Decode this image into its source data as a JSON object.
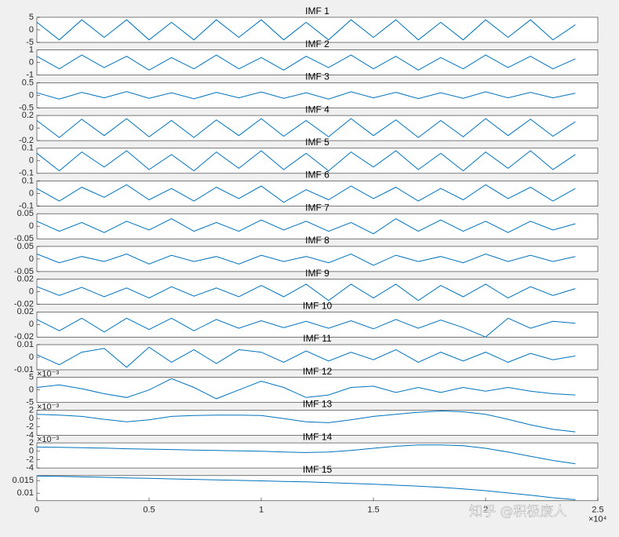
{
  "chart_data": [
    {
      "type": "line",
      "title": "IMF 1",
      "color": "#0072bd",
      "xlim": [
        0,
        25000
      ],
      "ylim": [
        -5,
        5
      ],
      "yticks": [
        -5,
        0,
        5
      ],
      "x": [
        0,
        1000,
        2000,
        3000,
        4000,
        5000,
        6000,
        7000,
        8000,
        9000,
        10000,
        11000,
        12000,
        13000,
        14000,
        15000,
        16000,
        17000,
        18000,
        19000,
        20000,
        21000,
        22000,
        23000,
        24000
      ],
      "values": [
        3,
        -4,
        4,
        -3,
        4,
        -4,
        3,
        -4,
        4,
        -3,
        4,
        -4,
        3,
        -4,
        4,
        -3,
        4,
        -4,
        3,
        -4,
        4,
        -3,
        4,
        -4,
        2
      ]
    },
    {
      "type": "line",
      "title": "IMF 2",
      "color": "#0072bd",
      "xlim": [
        0,
        25000
      ],
      "ylim": [
        -1,
        1
      ],
      "yticks": [
        -1,
        0,
        1
      ],
      "x": [
        0,
        1000,
        2000,
        3000,
        4000,
        5000,
        6000,
        7000,
        8000,
        9000,
        10000,
        11000,
        12000,
        13000,
        14000,
        15000,
        16000,
        17000,
        18000,
        19000,
        20000,
        21000,
        22000,
        23000,
        24000
      ],
      "values": [
        0.5,
        -0.5,
        0.6,
        -0.4,
        0.5,
        -0.6,
        0.4,
        -0.5,
        0.6,
        -0.5,
        0.4,
        -0.6,
        0.5,
        -0.4,
        0.6,
        -0.5,
        0.5,
        -0.6,
        0.4,
        -0.5,
        0.6,
        -0.4,
        0.5,
        -0.5,
        0.3
      ]
    },
    {
      "type": "line",
      "title": "IMF 3",
      "color": "#0072bd",
      "xlim": [
        0,
        25000
      ],
      "ylim": [
        -0.5,
        0.5
      ],
      "yticks": [
        -0.5,
        0,
        0.5
      ],
      "x": [
        0,
        1000,
        2000,
        3000,
        4000,
        5000,
        6000,
        7000,
        8000,
        9000,
        10000,
        11000,
        12000,
        13000,
        14000,
        15000,
        16000,
        17000,
        18000,
        19000,
        20000,
        21000,
        22000,
        23000,
        24000
      ],
      "values": [
        0.1,
        -0.15,
        0.12,
        -0.1,
        0.15,
        -0.12,
        0.1,
        -0.14,
        0.12,
        -0.1,
        0.13,
        -0.12,
        0.1,
        -0.15,
        0.14,
        -0.1,
        0.12,
        -0.13,
        0.1,
        -0.12,
        0.14,
        -0.1,
        0.12,
        -0.1,
        0.08
      ]
    },
    {
      "type": "line",
      "title": "IMF 4",
      "color": "#0072bd",
      "xlim": [
        0,
        25000
      ],
      "ylim": [
        -0.2,
        0.2
      ],
      "yticks": [
        -0.2,
        0,
        0.2
      ],
      "x": [
        0,
        1000,
        2000,
        3000,
        4000,
        5000,
        6000,
        7000,
        8000,
        9000,
        10000,
        11000,
        12000,
        13000,
        14000,
        15000,
        16000,
        17000,
        18000,
        19000,
        20000,
        21000,
        22000,
        23000,
        24000
      ],
      "values": [
        0.12,
        -0.15,
        0.14,
        -0.12,
        0.15,
        -0.14,
        0.12,
        -0.15,
        0.13,
        -0.12,
        0.15,
        -0.13,
        0.12,
        -0.14,
        0.15,
        -0.12,
        0.13,
        -0.15,
        0.12,
        -0.14,
        0.15,
        -0.12,
        0.14,
        -0.13,
        0.1
      ]
    },
    {
      "type": "line",
      "title": "IMF 5",
      "color": "#0072bd",
      "xlim": [
        0,
        25000
      ],
      "ylim": [
        -0.1,
        0.1
      ],
      "yticks": [
        -0.1,
        0,
        0.1
      ],
      "x": [
        0,
        1000,
        2000,
        3000,
        4000,
        5000,
        6000,
        7000,
        8000,
        9000,
        10000,
        11000,
        12000,
        13000,
        14000,
        15000,
        16000,
        17000,
        18000,
        19000,
        20000,
        21000,
        22000,
        23000,
        24000
      ],
      "values": [
        0.06,
        -0.08,
        0.07,
        -0.05,
        0.08,
        -0.07,
        0.05,
        -0.08,
        0.07,
        -0.06,
        0.08,
        -0.07,
        0.06,
        -0.08,
        0.07,
        -0.05,
        0.08,
        -0.07,
        0.06,
        -0.08,
        0.07,
        -0.06,
        0.08,
        -0.07,
        0.05
      ]
    },
    {
      "type": "line",
      "title": "IMF 6",
      "color": "#0072bd",
      "xlim": [
        0,
        25000
      ],
      "ylim": [
        -0.1,
        0.1
      ],
      "yticks": [
        -0.1,
        0,
        0.1
      ],
      "x": [
        0,
        1000,
        2000,
        3000,
        4000,
        5000,
        6000,
        7000,
        8000,
        9000,
        10000,
        11000,
        12000,
        13000,
        14000,
        15000,
        16000,
        17000,
        18000,
        19000,
        20000,
        21000,
        22000,
        23000,
        24000
      ],
      "values": [
        0.04,
        -0.06,
        0.05,
        -0.03,
        0.07,
        -0.05,
        0.04,
        -0.06,
        0.05,
        -0.04,
        0.06,
        -0.07,
        0.03,
        -0.05,
        0.06,
        -0.04,
        0.05,
        -0.06,
        0.04,
        -0.05,
        0.07,
        -0.04,
        0.05,
        -0.06,
        0.04
      ]
    },
    {
      "type": "line",
      "title": "IMF 7",
      "color": "#0072bd",
      "xlim": [
        0,
        25000
      ],
      "ylim": [
        -0.05,
        0.05
      ],
      "yticks": [
        -0.05,
        0,
        0.05
      ],
      "x": [
        0,
        1000,
        2000,
        3000,
        4000,
        5000,
        6000,
        7000,
        8000,
        9000,
        10000,
        11000,
        12000,
        13000,
        14000,
        15000,
        16000,
        17000,
        18000,
        19000,
        20000,
        21000,
        22000,
        23000,
        24000
      ],
      "values": [
        0.02,
        -0.02,
        0.015,
        -0.025,
        0.02,
        -0.015,
        0.03,
        -0.02,
        0.015,
        -0.02,
        0.025,
        -0.015,
        0.02,
        -0.02,
        0.015,
        -0.03,
        0.03,
        -0.02,
        0.025,
        -0.02,
        0.02,
        -0.025,
        0.02,
        -0.015,
        0.01
      ]
    },
    {
      "type": "line",
      "title": "IMF 8",
      "color": "#0072bd",
      "xlim": [
        0,
        25000
      ],
      "ylim": [
        -0.05,
        0.05
      ],
      "yticks": [
        -0.05,
        0,
        0.05
      ],
      "x": [
        0,
        1000,
        2000,
        3000,
        4000,
        5000,
        6000,
        7000,
        8000,
        9000,
        10000,
        11000,
        12000,
        13000,
        14000,
        15000,
        16000,
        17000,
        18000,
        19000,
        20000,
        21000,
        22000,
        23000,
        24000
      ],
      "values": [
        0.02,
        -0.015,
        0.01,
        -0.01,
        0.02,
        -0.02,
        0.015,
        -0.01,
        0.01,
        -0.02,
        0.015,
        -0.01,
        0.01,
        -0.015,
        0.02,
        -0.025,
        0.015,
        -0.01,
        0.01,
        -0.015,
        0.02,
        -0.01,
        0.015,
        -0.01,
        0.01
      ]
    },
    {
      "type": "line",
      "title": "IMF 9",
      "color": "#0072bd",
      "xlim": [
        0,
        25000
      ],
      "ylim": [
        -0.02,
        0.02
      ],
      "yticks": [
        -0.02,
        0,
        0.02
      ],
      "x": [
        0,
        1000,
        2000,
        3000,
        4000,
        5000,
        6000,
        7000,
        8000,
        9000,
        10000,
        11000,
        12000,
        13000,
        14000,
        15000,
        16000,
        17000,
        18000,
        19000,
        20000,
        21000,
        22000,
        23000,
        24000
      ],
      "values": [
        0.008,
        -0.006,
        0.007,
        -0.008,
        0.006,
        -0.01,
        0.008,
        -0.007,
        0.006,
        -0.008,
        0.01,
        -0.008,
        0.012,
        -0.014,
        0.012,
        -0.01,
        0.012,
        -0.014,
        0.01,
        -0.008,
        0.012,
        -0.01,
        0.008,
        -0.006,
        0.005
      ]
    },
    {
      "type": "line",
      "title": "IMF 10",
      "color": "#0072bd",
      "xlim": [
        0,
        25000
      ],
      "ylim": [
        -0.02,
        0.02
      ],
      "yticks": [
        -0.02,
        0,
        0.02
      ],
      "x": [
        0,
        1000,
        2000,
        3000,
        4000,
        5000,
        6000,
        7000,
        8000,
        9000,
        10000,
        11000,
        12000,
        13000,
        14000,
        15000,
        16000,
        17000,
        18000,
        19000,
        20000,
        21000,
        22000,
        23000,
        24000
      ],
      "values": [
        0.008,
        -0.01,
        0.01,
        -0.012,
        0.01,
        -0.008,
        0.01,
        -0.01,
        0.008,
        -0.006,
        0.006,
        -0.005,
        0.005,
        -0.006,
        0.006,
        -0.007,
        0.008,
        -0.006,
        0.007,
        -0.005,
        -0.02,
        0.01,
        -0.006,
        0.005,
        0.002
      ]
    },
    {
      "type": "line",
      "title": "IMF 11",
      "color": "#0072bd",
      "xlim": [
        0,
        25000
      ],
      "ylim": [
        -0.01,
        0.01
      ],
      "yticks": [
        -0.01,
        0,
        0.01
      ],
      "x": [
        0,
        1000,
        2000,
        3000,
        4000,
        5000,
        6000,
        7000,
        8000,
        9000,
        10000,
        11000,
        12000,
        13000,
        14000,
        15000,
        16000,
        17000,
        18000,
        19000,
        20000,
        21000,
        22000,
        23000,
        24000
      ],
      "values": [
        0.002,
        -0.006,
        0.004,
        0.007,
        -0.008,
        0.008,
        -0.004,
        0.006,
        -0.005,
        0.006,
        0.004,
        -0.004,
        0.005,
        -0.003,
        0.004,
        -0.002,
        0.006,
        -0.004,
        0.004,
        -0.003,
        0.004,
        -0.004,
        0.003,
        -0.002,
        0.001
      ]
    },
    {
      "type": "line",
      "title": "IMF 12",
      "color": "#0072bd",
      "xlim": [
        0,
        25000
      ],
      "ylim": [
        -5,
        5
      ],
      "yticks": [
        -5,
        0,
        5
      ],
      "y_multiplier": "×10⁻³",
      "x": [
        0,
        1000,
        2000,
        3000,
        4000,
        5000,
        6000,
        7000,
        8000,
        9000,
        10000,
        11000,
        12000,
        13000,
        14000,
        15000,
        16000,
        17000,
        18000,
        19000,
        20000,
        21000,
        22000,
        23000,
        24000
      ],
      "values": [
        1,
        2,
        0.5,
        -1.5,
        -3,
        0,
        4.5,
        1,
        -3.5,
        0,
        3.5,
        1,
        -3,
        -2,
        1,
        1.5,
        -1,
        1,
        -1,
        1,
        -0.5,
        1,
        -0.5,
        -1.5,
        -2
      ]
    },
    {
      "type": "line",
      "title": "IMF 13",
      "color": "#0072bd",
      "xlim": [
        0,
        25000
      ],
      "ylim": [
        -4,
        2
      ],
      "yticks": [
        -4,
        -2,
        0,
        2
      ],
      "y_multiplier": "×10⁻³",
      "x": [
        0,
        1000,
        2000,
        3000,
        4000,
        5000,
        6000,
        7000,
        8000,
        9000,
        10000,
        11000,
        12000,
        13000,
        14000,
        15000,
        16000,
        17000,
        18000,
        19000,
        20000,
        21000,
        22000,
        23000,
        24000
      ],
      "values": [
        1,
        0.8,
        0.5,
        -0.2,
        -0.8,
        -0.3,
        0.5,
        0.7,
        0.8,
        0.8,
        0.7,
        0,
        -0.8,
        -1,
        -0.3,
        0.5,
        1,
        1.5,
        1.8,
        1.6,
        1,
        -0.2,
        -1.5,
        -2.6,
        -3.2
      ]
    },
    {
      "type": "line",
      "title": "IMF 14",
      "color": "#0072bd",
      "xlim": [
        0,
        25000
      ],
      "ylim": [
        -4,
        2
      ],
      "yticks": [
        -4,
        -2,
        0,
        2
      ],
      "y_multiplier": "×10⁻³",
      "x": [
        0,
        1000,
        2000,
        3000,
        4000,
        5000,
        6000,
        7000,
        8000,
        9000,
        10000,
        11000,
        12000,
        13000,
        14000,
        15000,
        16000,
        17000,
        18000,
        19000,
        20000,
        21000,
        22000,
        23000,
        24000
      ],
      "values": [
        1,
        0.95,
        0.85,
        0.75,
        0.6,
        0.5,
        0.4,
        0.3,
        0.2,
        0.1,
        0,
        -0.2,
        -0.3,
        -0.2,
        0.2,
        0.7,
        1.2,
        1.5,
        1.5,
        1.3,
        0.7,
        -0.2,
        -1.2,
        -2.2,
        -3
      ]
    },
    {
      "type": "line",
      "title": "IMF 15",
      "color": "#0072bd",
      "xlim": [
        0,
        25000
      ],
      "ylim": [
        0.007,
        0.017
      ],
      "yticks": [
        0.01,
        0.015
      ],
      "xticks": [
        0,
        {
          "value": 5000,
          "label": "0.5"
        },
        {
          "value": 10000,
          "label": "1"
        },
        {
          "value": 15000,
          "label": "1.5"
        },
        {
          "value": 20000,
          "label": "2"
        },
        {
          "value": 25000,
          "label": "2.5"
        }
      ],
      "x_multiplier": "×10⁴",
      "x": [
        0,
        1000,
        2000,
        3000,
        4000,
        5000,
        6000,
        7000,
        8000,
        9000,
        10000,
        11000,
        12000,
        13000,
        14000,
        15000,
        16000,
        17000,
        18000,
        19000,
        20000,
        21000,
        22000,
        23000,
        24000
      ],
      "values": [
        0.0168,
        0.0167,
        0.0165,
        0.0163,
        0.0161,
        0.0159,
        0.0157,
        0.0155,
        0.0153,
        0.0151,
        0.0149,
        0.0147,
        0.0145,
        0.0142,
        0.0139,
        0.0136,
        0.0132,
        0.0128,
        0.0123,
        0.0117,
        0.011,
        0.0101,
        0.0092,
        0.0082,
        0.0074
      ]
    }
  ],
  "watermark": "知乎 @积极废人"
}
